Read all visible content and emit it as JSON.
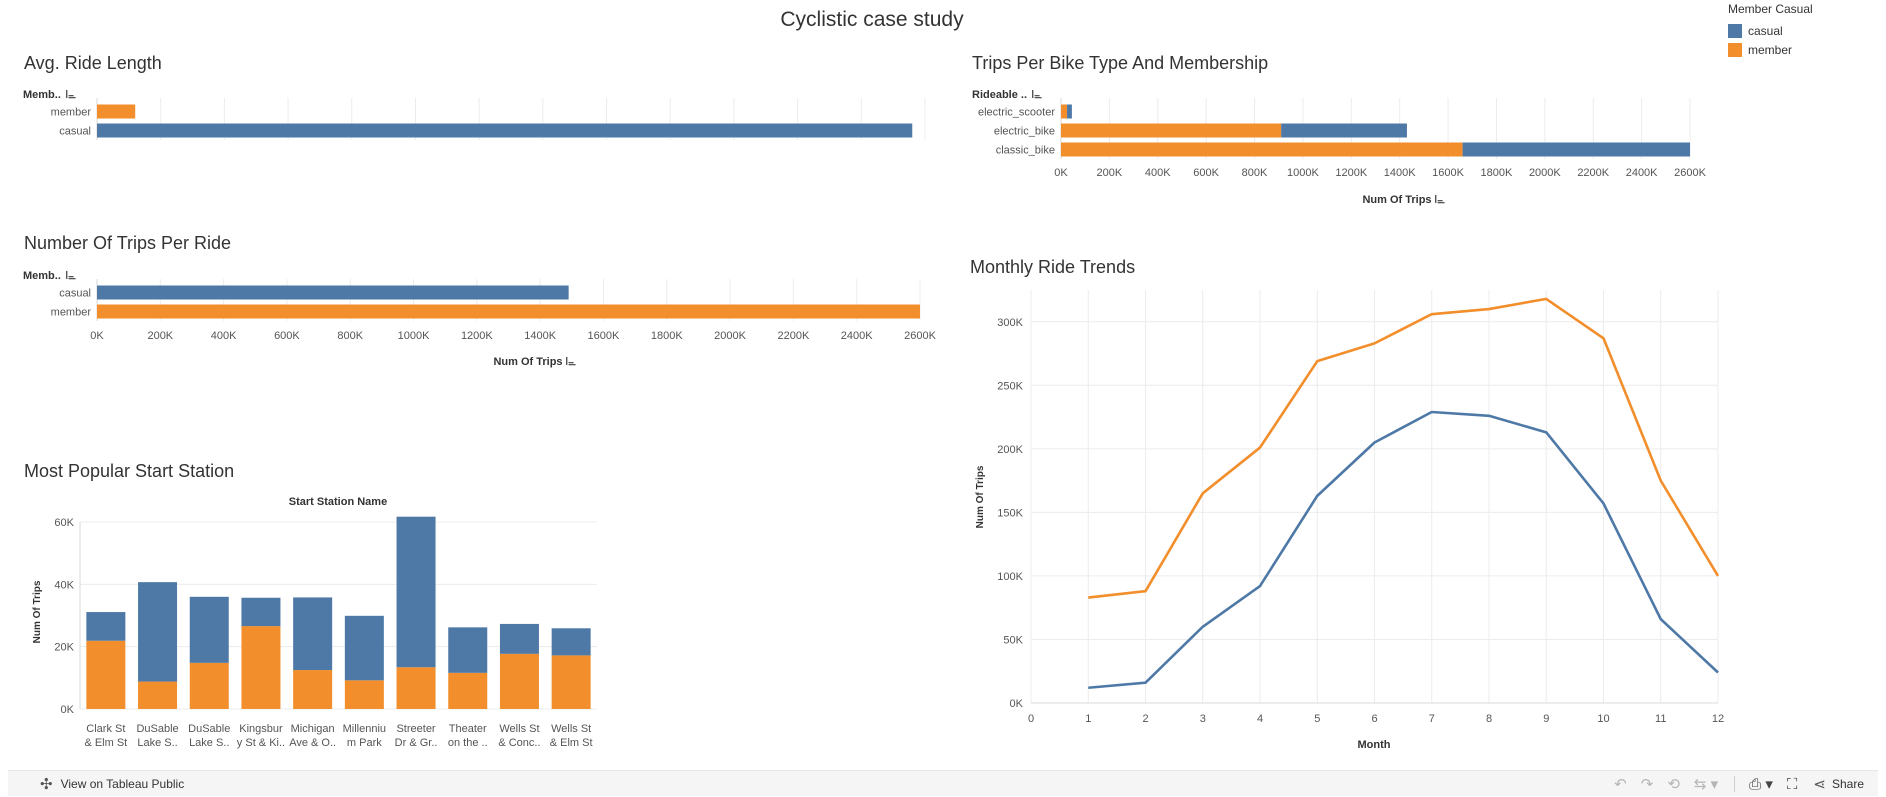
{
  "dashboard_title": "Cyclistic case study",
  "legend": {
    "title": "Member Casual",
    "items": [
      {
        "label": "casual",
        "color": "#4e79a7"
      },
      {
        "label": "member",
        "color": "#f28e2b"
      }
    ]
  },
  "footer": {
    "view_label": "View on Tableau Public",
    "share_label": "Share",
    "icons": [
      "tableau-icon",
      "undo-icon",
      "redo-icon",
      "revert-icon",
      "refresh-icon",
      "download-icon",
      "fullscreen-icon",
      "share-icon"
    ]
  },
  "chart_data": [
    {
      "id": "avg_ride_length",
      "type": "bar",
      "orientation": "horizontal",
      "title": "Avg. Ride Length",
      "dim_label": "Memb..",
      "categories": [
        "member",
        "casual"
      ],
      "colors": [
        "#f28e2b",
        "#4e79a7"
      ],
      "values": [
        12.0,
        256.0
      ],
      "xlim": [
        0,
        260
      ],
      "grid": true,
      "axis_shown": false
    },
    {
      "id": "trips_per_ride",
      "type": "bar",
      "orientation": "horizontal",
      "title": "Number Of Trips Per Ride",
      "dim_label": "Memb..",
      "categories": [
        "casual",
        "member"
      ],
      "colors": [
        "#4e79a7",
        "#f28e2b"
      ],
      "values": [
        1490000,
        2600000
      ],
      "xlim": [
        0,
        2600000
      ],
      "xticks": [
        "0K",
        "200K",
        "400K",
        "600K",
        "800K",
        "1000K",
        "1200K",
        "1400K",
        "1600K",
        "1800K",
        "2000K",
        "2200K",
        "2400K",
        "2600K"
      ],
      "xlabel": "Num Of Trips",
      "grid": true
    },
    {
      "id": "trips_by_bike_type",
      "type": "bar",
      "orientation": "horizontal",
      "stacked": true,
      "title": "Trips Per Bike Type And Membership",
      "dim_label": "Rideable ..",
      "categories": [
        "electric_scooter",
        "electric_bike",
        "classic_bike"
      ],
      "series": [
        {
          "name": "member",
          "color": "#f28e2b",
          "values": [
            25000,
            910000,
            1660000
          ]
        },
        {
          "name": "casual",
          "color": "#4e79a7",
          "values": [
            20000,
            520000,
            940000
          ]
        }
      ],
      "xlim": [
        0,
        2600000
      ],
      "xticks": [
        "0K",
        "200K",
        "400K",
        "600K",
        "800K",
        "1000K",
        "1200K",
        "1400K",
        "1600K",
        "1800K",
        "2000K",
        "2200K",
        "2400K",
        "2600K"
      ],
      "xlabel": "Num Of Trips",
      "grid": true
    },
    {
      "id": "start_station",
      "type": "bar",
      "stacked": true,
      "title": "Most Popular Start Station",
      "header": "Start Station Name",
      "categories": [
        [
          "Clark St",
          "& Elm St"
        ],
        [
          "DuSable",
          "Lake S.."
        ],
        [
          "DuSable",
          "Lake S.."
        ],
        [
          "Kingsbur",
          "y St & Ki.."
        ],
        [
          "Michigan",
          "Ave & O.."
        ],
        [
          "Millenniu",
          "m Park"
        ],
        [
          "Streeter",
          "Dr & Gr.."
        ],
        [
          "Theater",
          "on the .."
        ],
        [
          "Wells St",
          "& Conc.."
        ],
        [
          "Wells St",
          "& Elm St"
        ]
      ],
      "series": [
        {
          "name": "member",
          "color": "#f28e2b",
          "values": [
            21900,
            8800,
            14800,
            26600,
            12500,
            9200,
            13400,
            11600,
            17700,
            17200
          ]
        },
        {
          "name": "casual",
          "color": "#4e79a7",
          "values": [
            9200,
            31900,
            21200,
            9100,
            23300,
            20700,
            48300,
            14600,
            9600,
            8700
          ]
        }
      ],
      "ylim": [
        0,
        60000
      ],
      "yticks": [
        "0K",
        "20K",
        "40K",
        "60K"
      ],
      "ylabel": "Num Of Trips",
      "grid": true
    },
    {
      "id": "monthly_trends",
      "type": "line",
      "title": "Monthly Ride Trends",
      "x": [
        1,
        2,
        3,
        4,
        5,
        6,
        7,
        8,
        9,
        10,
        11,
        12
      ],
      "series": [
        {
          "name": "member",
          "color": "#f28e2b",
          "values": [
            83000,
            88000,
            165000,
            201000,
            269000,
            283000,
            306000,
            310000,
            318000,
            287000,
            175000,
            100000
          ]
        },
        {
          "name": "casual",
          "color": "#4e79a7",
          "values": [
            12000,
            16000,
            60000,
            92000,
            163000,
            205000,
            229000,
            226000,
            213000,
            157000,
            66000,
            24000
          ]
        }
      ],
      "xlim": [
        0,
        12
      ],
      "ylim": [
        0,
        325000
      ],
      "xticks": [
        "0",
        "1",
        "2",
        "3",
        "4",
        "5",
        "6",
        "7",
        "8",
        "9",
        "10",
        "11",
        "12"
      ],
      "yticks": [
        "0K",
        "50K",
        "100K",
        "150K",
        "200K",
        "250K",
        "300K"
      ],
      "xlabel": "Month",
      "ylabel": "Num Of Trips",
      "grid": true
    }
  ]
}
